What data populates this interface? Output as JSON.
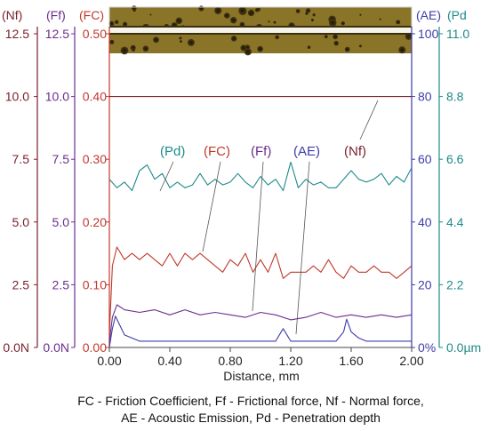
{
  "chart_data": {
    "type": "line",
    "xlabel": "Distance, mm",
    "xlim": [
      0,
      2.0
    ],
    "x_ticks": [
      "0.00",
      "0.40",
      "0.80",
      "1.20",
      "1.60",
      "2.00"
    ],
    "grid": false,
    "caption": [
      "FC - Friction Coefficient, Ff - Frictional force, Nf - Normal force,",
      "AE -  Acoustic Emission, Pd - Penetration depth"
    ],
    "colors": {
      "Nf": "#7a1f2b",
      "Ff": "#6b2d8f",
      "FC": "#c0392b",
      "AE": "#3d3da8",
      "Pd": "#1f8a8a"
    },
    "axes": [
      {
        "key": "Nf",
        "header": "(Nf)",
        "side": "left",
        "range": [
          0,
          12.5
        ],
        "ticks": [
          "0.0N",
          "2.5",
          "5.0",
          "7.5",
          "10.0",
          "12.5"
        ]
      },
      {
        "key": "Ff",
        "header": "(Ff)",
        "side": "left",
        "range": [
          0,
          12.5
        ],
        "ticks": [
          "0.0N",
          "2.5",
          "5.0",
          "7.5",
          "10.0",
          "12.5"
        ]
      },
      {
        "key": "FC",
        "header": "(FC)",
        "side": "left",
        "range": [
          0,
          0.5
        ],
        "ticks": [
          "0.00",
          "0.10",
          "0.20",
          "0.30",
          "0.40",
          "0.50"
        ]
      },
      {
        "key": "AE",
        "header": "(AE)",
        "side": "right",
        "range": [
          0,
          100
        ],
        "ticks": [
          "0%",
          "20",
          "40",
          "60",
          "80",
          "100"
        ]
      },
      {
        "key": "Pd",
        "header": "(Pd",
        "side": "right",
        "range": [
          0,
          11.0
        ],
        "ticks": [
          "0.0µm",
          "2.2",
          "4.4",
          "6.6",
          "8.8",
          "11.0"
        ]
      }
    ],
    "annotations": [
      {
        "text": "(Pd)",
        "series": "Pd"
      },
      {
        "text": "(FC)",
        "series": "FC"
      },
      {
        "text": "(Ff)",
        "series": "Ff"
      },
      {
        "text": "(AE)",
        "series": "AE"
      },
      {
        "text": "(Nf)",
        "series": "Nf"
      }
    ],
    "series": [
      {
        "key": "Nf",
        "x": [
          0.0,
          0.05,
          0.2,
          0.4,
          0.6,
          0.8,
          1.0,
          1.2,
          1.4,
          1.6,
          1.8,
          2.0
        ],
        "values": [
          10.0,
          10.0,
          10.0,
          10.0,
          10.0,
          10.0,
          10.0,
          10.0,
          10.0,
          10.0,
          10.0,
          10.0
        ]
      },
      {
        "key": "Pd",
        "x": [
          0.0,
          0.05,
          0.1,
          0.15,
          0.2,
          0.25,
          0.3,
          0.35,
          0.4,
          0.45,
          0.5,
          0.55,
          0.6,
          0.65,
          0.7,
          0.75,
          0.8,
          0.85,
          0.9,
          0.95,
          1.0,
          1.05,
          1.1,
          1.15,
          1.2,
          1.25,
          1.3,
          1.35,
          1.4,
          1.45,
          1.5,
          1.55,
          1.6,
          1.65,
          1.7,
          1.75,
          1.8,
          1.85,
          1.9,
          1.95,
          2.0
        ],
        "values": [
          5.9,
          5.6,
          5.8,
          5.5,
          6.2,
          6.4,
          5.9,
          6.1,
          5.6,
          5.8,
          5.6,
          5.7,
          6.1,
          5.7,
          5.9,
          5.7,
          5.8,
          6.1,
          5.8,
          5.6,
          6.0,
          5.7,
          5.9,
          5.5,
          6.5,
          5.6,
          5.9,
          5.7,
          5.8,
          5.6,
          5.6,
          5.9,
          6.2,
          5.9,
          5.8,
          5.9,
          6.1,
          5.7,
          6.0,
          5.8,
          6.3
        ]
      },
      {
        "key": "FC",
        "x": [
          0.0,
          0.02,
          0.05,
          0.1,
          0.15,
          0.2,
          0.25,
          0.3,
          0.35,
          0.4,
          0.45,
          0.5,
          0.55,
          0.6,
          0.65,
          0.7,
          0.75,
          0.8,
          0.85,
          0.9,
          0.95,
          1.0,
          1.05,
          1.1,
          1.15,
          1.2,
          1.25,
          1.3,
          1.35,
          1.4,
          1.45,
          1.5,
          1.55,
          1.6,
          1.65,
          1.7,
          1.75,
          1.8,
          1.85,
          1.9,
          1.95,
          2.0
        ],
        "values": [
          0.02,
          0.13,
          0.16,
          0.14,
          0.15,
          0.14,
          0.15,
          0.14,
          0.13,
          0.15,
          0.13,
          0.15,
          0.14,
          0.15,
          0.14,
          0.13,
          0.12,
          0.14,
          0.13,
          0.15,
          0.12,
          0.14,
          0.12,
          0.15,
          0.11,
          0.12,
          0.12,
          0.12,
          0.13,
          0.12,
          0.14,
          0.12,
          0.11,
          0.13,
          0.12,
          0.12,
          0.13,
          0.12,
          0.12,
          0.11,
          0.12,
          0.13
        ]
      },
      {
        "key": "Ff",
        "x": [
          0.0,
          0.02,
          0.05,
          0.1,
          0.2,
          0.3,
          0.4,
          0.5,
          0.6,
          0.7,
          0.8,
          0.9,
          1.0,
          1.1,
          1.2,
          1.3,
          1.4,
          1.5,
          1.6,
          1.7,
          1.8,
          1.9,
          2.0
        ],
        "values": [
          0.2,
          1.2,
          1.7,
          1.5,
          1.4,
          1.5,
          1.3,
          1.5,
          1.3,
          1.4,
          1.3,
          1.2,
          1.4,
          1.3,
          1.1,
          1.2,
          1.4,
          1.2,
          1.3,
          1.2,
          1.3,
          1.2,
          1.3
        ]
      },
      {
        "key": "AE",
        "x": [
          0.0,
          0.02,
          0.04,
          0.06,
          0.1,
          0.15,
          0.2,
          0.4,
          0.6,
          0.8,
          1.0,
          1.1,
          1.15,
          1.2,
          1.4,
          1.5,
          1.55,
          1.57,
          1.6,
          1.65,
          1.7,
          1.8,
          2.0
        ],
        "values": [
          0,
          6,
          10,
          8,
          4,
          3,
          2,
          2,
          2,
          2,
          2,
          2,
          6,
          2,
          2,
          2,
          5,
          9,
          5,
          3,
          2,
          2,
          2
        ]
      }
    ]
  }
}
